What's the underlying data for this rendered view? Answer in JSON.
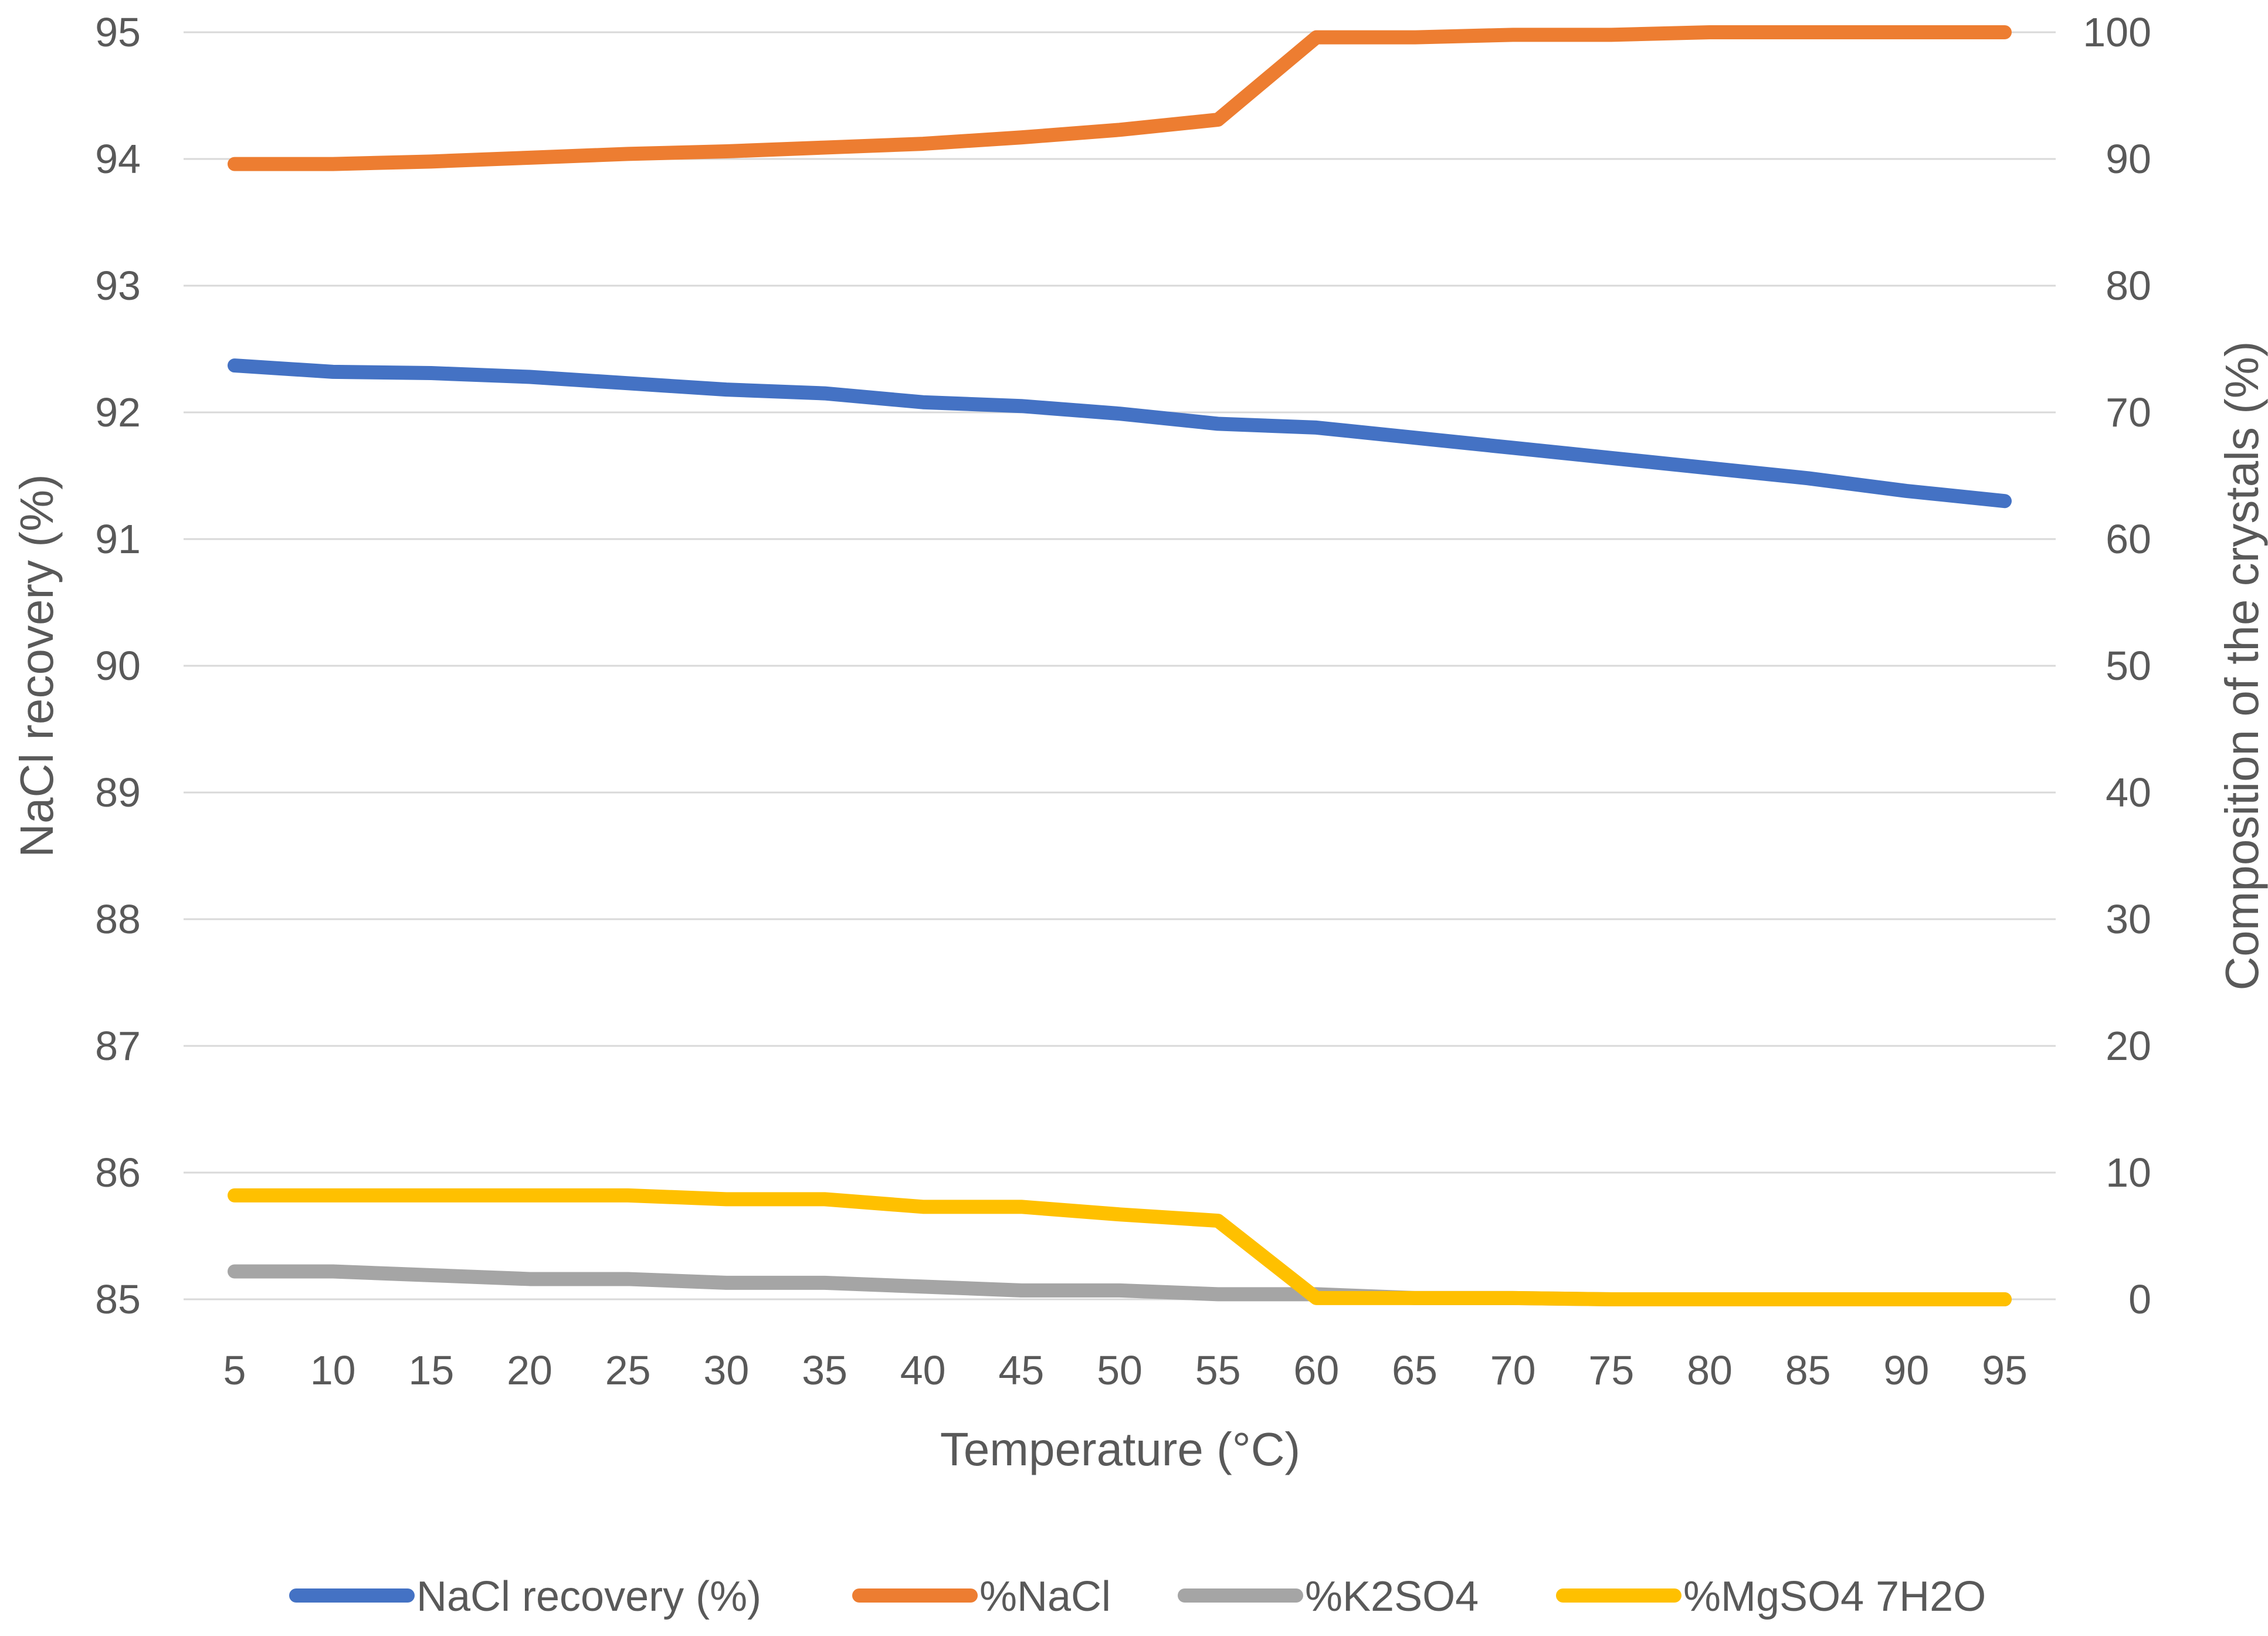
{
  "chart_data": {
    "type": "line",
    "xlabel": "Temperature (°C)",
    "ylabel_left": "NaCl recovery (%)",
    "ylabel_right": "Composition of the crystals (%)",
    "x": [
      5,
      10,
      15,
      20,
      25,
      30,
      35,
      40,
      45,
      50,
      55,
      60,
      65,
      70,
      75,
      80,
      85,
      90,
      95
    ],
    "y_left": {
      "min": 85,
      "max": 95,
      "ticks": [
        85,
        86,
        87,
        88,
        89,
        90,
        91,
        92,
        93,
        94,
        95
      ]
    },
    "y_right": {
      "min": 0,
      "max": 100,
      "ticks": [
        0,
        10,
        20,
        30,
        40,
        50,
        60,
        70,
        80,
        90,
        100
      ]
    },
    "grid": true,
    "legend_position": "bottom",
    "series": [
      {
        "name": "NaCl recovery (%)",
        "axis": "left",
        "color": "#4472C4",
        "values": [
          92.37,
          92.32,
          92.31,
          92.28,
          92.23,
          92.18,
          92.15,
          92.08,
          92.05,
          91.99,
          91.91,
          91.88,
          91.8,
          91.72,
          91.64,
          91.56,
          91.48,
          91.38,
          91.3
        ]
      },
      {
        "name": "%NaCl",
        "axis": "right",
        "color": "#ED7D31",
        "values": [
          89.6,
          89.6,
          89.8,
          90.1,
          90.4,
          90.6,
          90.9,
          91.2,
          91.7,
          92.3,
          93.1,
          99.6,
          99.6,
          99.8,
          99.8,
          100.0,
          100.0,
          100.0,
          100.0
        ]
      },
      {
        "name": "%K2SO4",
        "axis": "right",
        "color": "#A5A5A5",
        "values": [
          2.2,
          2.2,
          1.9,
          1.6,
          1.6,
          1.3,
          1.3,
          1.0,
          0.7,
          0.7,
          0.4,
          0.4,
          0.1,
          0.1,
          0.0,
          0.0,
          0.0,
          0.0,
          0.0
        ]
      },
      {
        "name": "%MgSO4 7H2O",
        "axis": "right",
        "color": "#FFC000",
        "values": [
          8.2,
          8.2,
          8.2,
          8.2,
          8.2,
          7.9,
          7.9,
          7.3,
          7.3,
          6.7,
          6.2,
          0.1,
          0.1,
          0.1,
          0.0,
          0.0,
          0.0,
          0.0,
          0.0
        ]
      }
    ]
  }
}
